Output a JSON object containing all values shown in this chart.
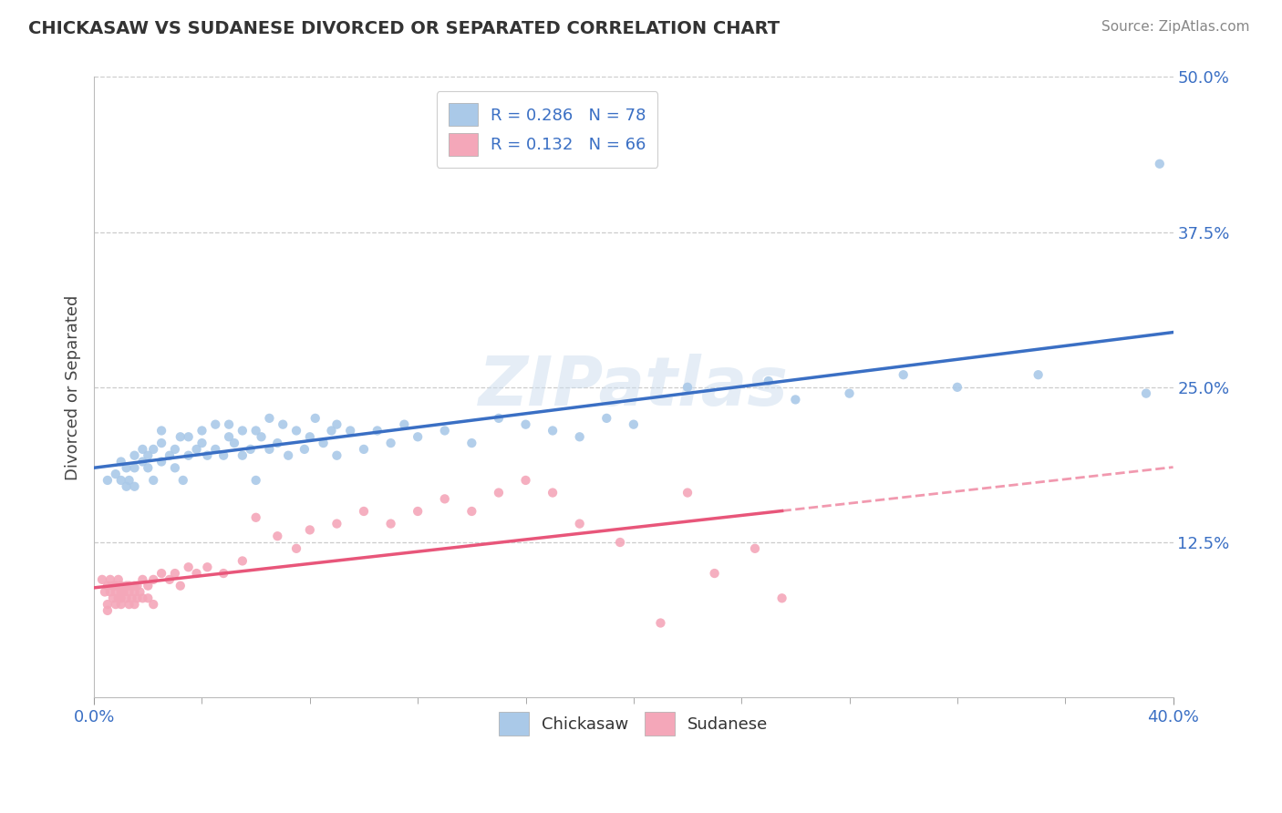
{
  "title": "CHICKASAW VS SUDANESE DIVORCED OR SEPARATED CORRELATION CHART",
  "source_text": "Source: ZipAtlas.com",
  "ylabel": "Divorced or Separated",
  "legend_label1": "R = 0.286   N = 78",
  "legend_label2": "R = 0.132   N = 66",
  "legend_bottom1": "Chickasaw",
  "legend_bottom2": "Sudanese",
  "xlim": [
    0.0,
    0.4
  ],
  "ylim": [
    0.0,
    0.5
  ],
  "xtick_labels": [
    "0.0%",
    "40.0%"
  ],
  "ytick_labels": [
    "12.5%",
    "25.0%",
    "37.5%",
    "50.0%"
  ],
  "yticks": [
    0.125,
    0.25,
    0.375,
    0.5
  ],
  "color_chickasaw": "#aac9e8",
  "color_sudanese": "#f4a7b9",
  "trendline_chickasaw": "#3a6fc4",
  "trendline_sudanese": "#e8567a",
  "watermark": "ZIPatlas",
  "chickasaw_x": [
    0.005,
    0.008,
    0.01,
    0.01,
    0.012,
    0.012,
    0.013,
    0.015,
    0.015,
    0.015,
    0.018,
    0.018,
    0.02,
    0.02,
    0.022,
    0.022,
    0.025,
    0.025,
    0.025,
    0.028,
    0.03,
    0.03,
    0.032,
    0.033,
    0.035,
    0.035,
    0.038,
    0.04,
    0.04,
    0.042,
    0.045,
    0.045,
    0.048,
    0.05,
    0.05,
    0.052,
    0.055,
    0.055,
    0.058,
    0.06,
    0.06,
    0.062,
    0.065,
    0.065,
    0.068,
    0.07,
    0.072,
    0.075,
    0.078,
    0.08,
    0.082,
    0.085,
    0.088,
    0.09,
    0.09,
    0.095,
    0.1,
    0.105,
    0.11,
    0.115,
    0.12,
    0.13,
    0.14,
    0.15,
    0.16,
    0.17,
    0.18,
    0.19,
    0.2,
    0.22,
    0.25,
    0.26,
    0.28,
    0.3,
    0.32,
    0.35,
    0.39,
    0.395
  ],
  "chickasaw_y": [
    0.175,
    0.18,
    0.175,
    0.19,
    0.185,
    0.17,
    0.175,
    0.195,
    0.185,
    0.17,
    0.19,
    0.2,
    0.185,
    0.195,
    0.175,
    0.2,
    0.19,
    0.205,
    0.215,
    0.195,
    0.2,
    0.185,
    0.21,
    0.175,
    0.195,
    0.21,
    0.2,
    0.205,
    0.215,
    0.195,
    0.2,
    0.22,
    0.195,
    0.21,
    0.22,
    0.205,
    0.195,
    0.215,
    0.2,
    0.215,
    0.175,
    0.21,
    0.2,
    0.225,
    0.205,
    0.22,
    0.195,
    0.215,
    0.2,
    0.21,
    0.225,
    0.205,
    0.215,
    0.22,
    0.195,
    0.215,
    0.2,
    0.215,
    0.205,
    0.22,
    0.21,
    0.215,
    0.205,
    0.225,
    0.22,
    0.215,
    0.21,
    0.225,
    0.22,
    0.25,
    0.255,
    0.24,
    0.245,
    0.26,
    0.25,
    0.26,
    0.245,
    0.43
  ],
  "sudanese_x": [
    0.003,
    0.004,
    0.005,
    0.005,
    0.005,
    0.006,
    0.006,
    0.007,
    0.007,
    0.008,
    0.008,
    0.008,
    0.009,
    0.009,
    0.01,
    0.01,
    0.01,
    0.01,
    0.011,
    0.012,
    0.012,
    0.013,
    0.013,
    0.013,
    0.014,
    0.015,
    0.015,
    0.015,
    0.016,
    0.016,
    0.017,
    0.018,
    0.018,
    0.02,
    0.02,
    0.022,
    0.022,
    0.025,
    0.028,
    0.03,
    0.032,
    0.035,
    0.038,
    0.042,
    0.048,
    0.055,
    0.06,
    0.068,
    0.075,
    0.08,
    0.09,
    0.1,
    0.11,
    0.12,
    0.13,
    0.14,
    0.15,
    0.16,
    0.17,
    0.18,
    0.195,
    0.21,
    0.22,
    0.23,
    0.245,
    0.255
  ],
  "sudanese_y": [
    0.095,
    0.085,
    0.09,
    0.075,
    0.07,
    0.085,
    0.095,
    0.08,
    0.09,
    0.085,
    0.075,
    0.09,
    0.08,
    0.095,
    0.085,
    0.075,
    0.09,
    0.08,
    0.085,
    0.09,
    0.08,
    0.085,
    0.075,
    0.09,
    0.08,
    0.09,
    0.075,
    0.085,
    0.08,
    0.09,
    0.085,
    0.08,
    0.095,
    0.09,
    0.08,
    0.095,
    0.075,
    0.1,
    0.095,
    0.1,
    0.09,
    0.105,
    0.1,
    0.105,
    0.1,
    0.11,
    0.145,
    0.13,
    0.12,
    0.135,
    0.14,
    0.15,
    0.14,
    0.15,
    0.16,
    0.15,
    0.165,
    0.175,
    0.165,
    0.14,
    0.125,
    0.06,
    0.165,
    0.1,
    0.12,
    0.08
  ]
}
